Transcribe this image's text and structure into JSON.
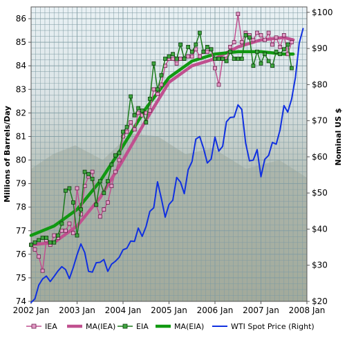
{
  "chart_data": {
    "type": "line",
    "title": "",
    "ylabel": "Millions of Barrels/Day",
    "y2label": "Nominal US $",
    "ylim": [
      74,
      86.5
    ],
    "y2lim": [
      20,
      101.5
    ],
    "xlim": [
      2002.0,
      2008.0
    ],
    "grid": true,
    "legend_position": "bottom",
    "x_tick_labels": [
      "2002 Jan",
      "2003 Jan",
      "2004 Jan",
      "2005 Jan",
      "2006 Jan",
      "2007 Jan",
      "2008 Jan"
    ],
    "y_tick_labels": [
      "74",
      "75",
      "76",
      "77",
      "78",
      "79",
      "80",
      "81",
      "82",
      "83",
      "84",
      "85",
      "86"
    ],
    "y2_tick_labels": [
      "$20",
      "$30",
      "$40",
      "$50",
      "$60",
      "$70",
      "$80",
      "$90",
      "$100"
    ],
    "colors": {
      "iea": "#c0508f",
      "ma_iea": "#c0508f",
      "eia": "#1a7a1a",
      "ma_eia": "#119911",
      "wti": "#1030e0",
      "grid": "#7f9ba3",
      "plot_bg": "#e7eef0"
    },
    "series": [
      {
        "name": "IEA",
        "axis": "left",
        "style": "line-square-markers",
        "x": [
          2002.0,
          2002.083,
          2002.167,
          2002.25,
          2002.333,
          2002.417,
          2002.5,
          2002.583,
          2002.667,
          2002.75,
          2002.833,
          2002.917,
          2003.0,
          2003.083,
          2003.167,
          2003.25,
          2003.333,
          2003.417,
          2003.5,
          2003.583,
          2003.667,
          2003.75,
          2003.833,
          2003.917,
          2004.0,
          2004.083,
          2004.167,
          2004.25,
          2004.333,
          2004.417,
          2004.5,
          2004.583,
          2004.667,
          2004.75,
          2004.833,
          2004.917,
          2005.0,
          2005.083,
          2005.167,
          2005.25,
          2005.333,
          2005.417,
          2005.5,
          2005.583,
          2005.667,
          2005.75,
          2005.833,
          2005.917,
          2006.0,
          2006.083,
          2006.167,
          2006.25,
          2006.333,
          2006.417,
          2006.5,
          2006.583,
          2006.667,
          2006.75,
          2006.833,
          2006.917,
          2007.0,
          2007.083,
          2007.167,
          2007.25,
          2007.333,
          2007.417,
          2007.5,
          2007.583,
          2007.667
        ],
        "values": [
          76.4,
          76.2,
          75.9,
          75.3,
          76.6,
          76.4,
          76.8,
          76.7,
          77.0,
          77.0,
          77.3,
          76.9,
          78.8,
          77.7,
          78.9,
          79.3,
          79.5,
          78.1,
          77.6,
          77.9,
          78.2,
          78.9,
          79.5,
          80.0,
          81.0,
          81.2,
          81.6,
          81.3,
          82.0,
          81.9,
          82.0,
          82.1,
          83.0,
          82.8,
          83.2,
          84.0,
          84.3,
          84.3,
          84.1,
          84.3,
          84.3,
          84.4,
          84.4,
          84.7,
          84.4,
          84.6,
          84.6,
          84.7,
          83.9,
          83.2,
          84.3,
          84.3,
          84.8,
          85.0,
          86.2,
          85.0,
          85.4,
          85.3,
          85.1,
          85.4,
          85.3,
          85.1,
          85.4,
          84.9,
          85.2,
          84.8,
          85.3,
          84.5,
          85.0
        ]
      },
      {
        "name": "MA(IEA)",
        "axis": "left",
        "style": "thick-line",
        "x": [
          2002.0,
          2002.5,
          2003.0,
          2003.5,
          2004.0,
          2004.5,
          2005.0,
          2005.5,
          2006.0,
          2006.5,
          2007.0,
          2007.5,
          2007.7
        ],
        "values": [
          76.4,
          76.5,
          77.2,
          78.4,
          80.0,
          81.7,
          83.3,
          84.0,
          84.3,
          84.8,
          85.1,
          85.2,
          85.1
        ]
      },
      {
        "name": "EIA",
        "axis": "left",
        "style": "line-square-markers",
        "x": [
          2002.0,
          2002.083,
          2002.167,
          2002.25,
          2002.333,
          2002.417,
          2002.5,
          2002.583,
          2002.667,
          2002.75,
          2002.833,
          2002.917,
          2003.0,
          2003.083,
          2003.167,
          2003.25,
          2003.333,
          2003.417,
          2003.5,
          2003.583,
          2003.667,
          2003.75,
          2003.833,
          2003.917,
          2004.0,
          2004.083,
          2004.167,
          2004.25,
          2004.333,
          2004.417,
          2004.5,
          2004.583,
          2004.667,
          2004.75,
          2004.833,
          2004.917,
          2005.0,
          2005.083,
          2005.167,
          2005.25,
          2005.333,
          2005.417,
          2005.5,
          2005.583,
          2005.667,
          2005.75,
          2005.833,
          2005.917,
          2006.0,
          2006.083,
          2006.167,
          2006.25,
          2006.333,
          2006.417,
          2006.5,
          2006.583,
          2006.667,
          2006.75,
          2006.833,
          2006.917,
          2007.0,
          2007.083,
          2007.167,
          2007.25,
          2007.333,
          2007.417,
          2007.5,
          2007.583,
          2007.667
        ],
        "values": [
          76.4,
          76.5,
          76.6,
          76.7,
          76.7,
          76.5,
          76.5,
          76.8,
          77.3,
          78.7,
          78.8,
          78.2,
          76.8,
          77.9,
          79.5,
          79.4,
          79.2,
          78.1,
          79.1,
          78.6,
          79.1,
          79.8,
          80.2,
          80.3,
          81.2,
          81.4,
          82.7,
          81.9,
          82.2,
          82.1,
          81.6,
          82.6,
          84.1,
          83.0,
          83.6,
          84.3,
          84.4,
          84.5,
          84.3,
          84.9,
          84.3,
          84.8,
          84.6,
          84.9,
          85.4,
          84.6,
          84.8,
          84.7,
          84.3,
          84.3,
          84.3,
          84.2,
          84.6,
          84.3,
          84.3,
          84.3,
          85.3,
          85.2,
          84.0,
          84.6,
          84.1,
          84.5,
          84.2,
          84.0,
          84.6,
          84.5,
          84.7,
          84.9,
          83.9
        ]
      },
      {
        "name": "MA(EIA)",
        "axis": "left",
        "style": "thick-line",
        "x": [
          2002.0,
          2002.5,
          2003.0,
          2003.5,
          2004.0,
          2004.5,
          2005.0,
          2005.5,
          2006.0,
          2006.5,
          2007.0,
          2007.5,
          2007.7
        ],
        "values": [
          76.8,
          77.2,
          77.9,
          79.1,
          80.6,
          82.2,
          83.5,
          84.2,
          84.5,
          84.6,
          84.6,
          84.5,
          84.5
        ]
      },
      {
        "name": "WTI Spot Price (Right)",
        "axis": "right",
        "style": "line",
        "x": [
          2002.0,
          2002.083,
          2002.167,
          2002.25,
          2002.333,
          2002.417,
          2002.5,
          2002.583,
          2002.667,
          2002.75,
          2002.833,
          2002.917,
          2003.0,
          2003.083,
          2003.167,
          2003.25,
          2003.333,
          2003.417,
          2003.5,
          2003.583,
          2003.667,
          2003.75,
          2003.833,
          2003.917,
          2004.0,
          2004.083,
          2004.167,
          2004.25,
          2004.333,
          2004.417,
          2004.5,
          2004.583,
          2004.667,
          2004.75,
          2004.833,
          2004.917,
          2005.0,
          2005.083,
          2005.167,
          2005.25,
          2005.333,
          2005.417,
          2005.5,
          2005.583,
          2005.667,
          2005.75,
          2005.833,
          2005.917,
          2006.0,
          2006.083,
          2006.167,
          2006.25,
          2006.333,
          2006.417,
          2006.5,
          2006.583,
          2006.667,
          2006.75,
          2006.833,
          2006.917,
          2007.0,
          2007.083,
          2007.167,
          2007.25,
          2007.333,
          2007.417,
          2007.5,
          2007.583,
          2007.667,
          2007.75,
          2007.833,
          2007.917
        ],
        "values": [
          19.7,
          20.7,
          24.5,
          26.2,
          27.0,
          25.5,
          26.9,
          28.4,
          29.6,
          28.8,
          26.3,
          29.4,
          32.9,
          35.9,
          33.5,
          28.3,
          28.1,
          30.7,
          30.8,
          31.6,
          28.3,
          30.3,
          31.1,
          32.2,
          34.3,
          34.7,
          36.7,
          36.6,
          40.3,
          38.0,
          40.7,
          44.9,
          45.9,
          53.1,
          48.5,
          43.3,
          46.8,
          48.0,
          54.3,
          53.0,
          49.8,
          56.4,
          58.7,
          64.9,
          65.6,
          62.4,
          58.3,
          59.4,
          65.5,
          61.6,
          62.9,
          69.7,
          70.9,
          71.0,
          74.4,
          73.1,
          63.8,
          58.9,
          59.1,
          62.0,
          54.5,
          59.3,
          60.4,
          64.0,
          63.5,
          67.5,
          74.2,
          72.4,
          76.0,
          82.0,
          91.5,
          95.5
        ]
      }
    ]
  }
}
